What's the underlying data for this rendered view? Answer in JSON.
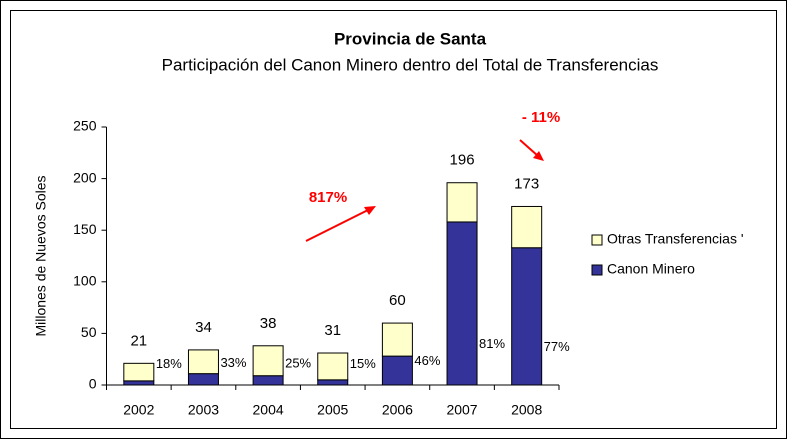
{
  "chart_data": {
    "type": "stacked_bar",
    "title": "Provincia de Santa",
    "subtitle": "Participación del Canon Minero dentro del Total de Transferencias",
    "y_label": "Millones de Nuevos Soles",
    "categories": [
      "2002",
      "2003",
      "2004",
      "2005",
      "2006",
      "2007",
      "2008"
    ],
    "series": [
      {
        "name": "Canon Minero",
        "color": "#333399",
        "values": [
          4,
          11,
          9,
          5,
          28,
          158,
          133
        ]
      },
      {
        "name": "Otras Transferencias '",
        "color": "#ffffcc",
        "values": [
          17,
          23,
          29,
          26,
          32,
          38,
          40
        ]
      }
    ],
    "totals": [
      21,
      34,
      38,
      31,
      60,
      196,
      173
    ],
    "share_labels": [
      "18%",
      "33%",
      "25%",
      "15%",
      "46%",
      "81%",
      "77%"
    ],
    "annotations": [
      "817%",
      "- 11%"
    ],
    "ylim": [
      0,
      250
    ],
    "yticks": [
      0,
      50,
      100,
      150,
      200,
      250
    ],
    "legend": "right"
  }
}
